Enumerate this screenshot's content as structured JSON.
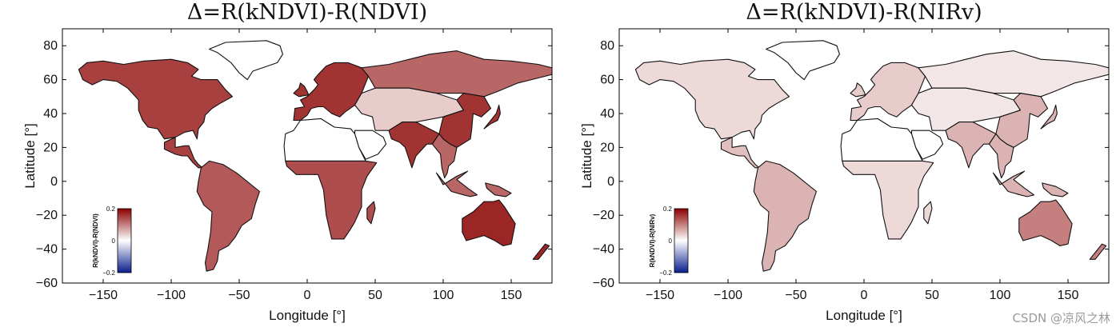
{
  "watermark": "CSDN @凉风之林",
  "chart_data": [
    {
      "type": "heatmap",
      "title": "Δ=R(kNDVI)-R(NDVI)",
      "xlabel": "Longitude [°]",
      "ylabel": "Latitude [°]",
      "xlim": [
        -180,
        180
      ],
      "ylim": [
        -60,
        90
      ],
      "xticks": [
        -150,
        -100,
        -50,
        0,
        50,
        100,
        150
      ],
      "yticks": [
        80,
        60,
        40,
        20,
        0,
        -20,
        -40,
        -60
      ],
      "colorbar": {
        "label": "R(kNDVI)-R(NDVI)",
        "min": -0.2,
        "max": 0.2,
        "ticks": [
          "0.2",
          "0",
          "-0.2"
        ],
        "colors": [
          "#0a1e8c",
          "#ffffff",
          "#8b0000"
        ]
      },
      "regions": [
        {
          "name": "North America",
          "value": 0.15
        },
        {
          "name": "Central America",
          "value": 0.15
        },
        {
          "name": "South America",
          "value": 0.13
        },
        {
          "name": "Europe",
          "value": 0.16
        },
        {
          "name": "Northern Asia",
          "value": 0.12
        },
        {
          "name": "Central Asia",
          "value": 0.04
        },
        {
          "name": "East Asia",
          "value": 0.16
        },
        {
          "name": "Southeast Asia",
          "value": 0.12
        },
        {
          "name": "North Africa / Sahara",
          "value": 0.0
        },
        {
          "name": "Sub-Saharan Africa",
          "value": 0.14
        },
        {
          "name": "Australia",
          "value": 0.17
        }
      ]
    },
    {
      "type": "heatmap",
      "title": "Δ=R(kNDVI)-R(NIRv)",
      "xlabel": "Longitude [°]",
      "ylabel": "Latitude [°]",
      "xlim": [
        -180,
        180
      ],
      "ylim": [
        -60,
        90
      ],
      "xticks": [
        -150,
        -100,
        -50,
        0,
        50,
        100,
        150
      ],
      "yticks": [
        80,
        60,
        40,
        20,
        0,
        -20,
        -40,
        -60
      ],
      "colorbar": {
        "label": "R(kNDVI)-R(NIRv)",
        "min": -0.2,
        "max": 0.2,
        "ticks": [
          "0.2",
          "0",
          "-0.2"
        ],
        "colors": [
          "#0a1e8c",
          "#ffffff",
          "#8b0000"
        ]
      },
      "regions": [
        {
          "name": "North America",
          "value": 0.03
        },
        {
          "name": "Central America",
          "value": 0.05
        },
        {
          "name": "South America",
          "value": 0.06
        },
        {
          "name": "Europe",
          "value": 0.04
        },
        {
          "name": "Northern Asia",
          "value": 0.02
        },
        {
          "name": "Central Asia",
          "value": 0.02
        },
        {
          "name": "East Asia",
          "value": 0.06
        },
        {
          "name": "Southeast Asia",
          "value": 0.06
        },
        {
          "name": "North Africa / Sahara",
          "value": 0.0
        },
        {
          "name": "Sub-Saharan Africa",
          "value": 0.03
        },
        {
          "name": "Australia",
          "value": 0.1
        }
      ]
    }
  ]
}
